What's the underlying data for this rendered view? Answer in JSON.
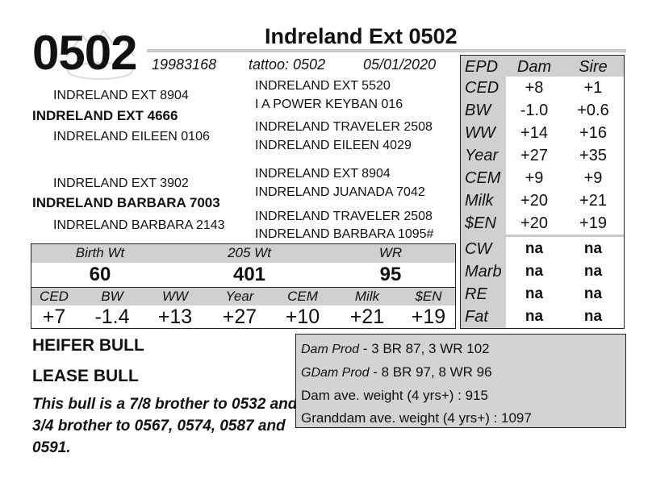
{
  "header": {
    "lot": "0502",
    "name": "Indreland Ext 0502",
    "registration": "19983168",
    "tattoo": "tattoo: 0502",
    "birth_date": "05/01/2020"
  },
  "pedigree": {
    "sire_sire": "INDRELAND EXT 8904",
    "sire": "INDRELAND EXT 4666",
    "sire_dam": "INDRELAND EILEEN 0106",
    "dam_sire": "INDRELAND EXT 3902",
    "dam": "INDRELAND BARBARA 7003",
    "dam_dam": "INDRELAND BARBARA 2143",
    "third_gen": [
      "INDRELAND EXT 5520",
      "I A POWER KEYBAN 016",
      "INDRELAND TRAVELER 2508",
      "INDRELAND EILEEN 4029",
      "INDRELAND EXT 8904",
      "INDRELAND JUANADA 7042",
      "INDRELAND TRAVELER 2508",
      "INDRELAND BARBARA 1095#"
    ]
  },
  "epd_table": {
    "headers": [
      "EPD",
      "Dam",
      "Sire"
    ],
    "rows": [
      {
        "label": "CED",
        "dam": "+8",
        "sire": "+1"
      },
      {
        "label": "BW",
        "dam": "-1.0",
        "sire": "+0.6"
      },
      {
        "label": "WW",
        "dam": "+14",
        "sire": "+16"
      },
      {
        "label": "Year",
        "dam": "+27",
        "sire": "+35"
      },
      {
        "label": "CEM",
        "dam": "+9",
        "sire": "+9"
      },
      {
        "label": "Milk",
        "dam": "+20",
        "sire": "+21"
      },
      {
        "label": "$EN",
        "dam": "+20",
        "sire": "+19"
      },
      {
        "label": "CW",
        "dam": "na",
        "sire": "na"
      },
      {
        "label": "Marb",
        "dam": "na",
        "sire": "na"
      },
      {
        "label": "RE",
        "dam": "na",
        "sire": "na"
      },
      {
        "label": "Fat",
        "dam": "na",
        "sire": "na"
      }
    ]
  },
  "performance": {
    "headers": [
      "Birth Wt",
      "205 Wt",
      "WR"
    ],
    "values": [
      "60",
      "401",
      "95"
    ],
    "epd_labels": [
      "CED",
      "BW",
      "WW",
      "Year",
      "CEM",
      "Milk",
      "$EN"
    ],
    "epd_values": [
      "+7",
      "-1.4",
      "+13",
      "+27",
      "+10",
      "+21",
      "+19"
    ]
  },
  "tags": [
    "HEIFER BULL",
    "LEASE BULL"
  ],
  "note": "This bull is a 7/8 brother to 0532 and 3/4 brother to 0567, 0574, 0587 and 0591.",
  "production": {
    "dam_prod_label": "Dam Prod",
    "dam_prod": " - 3 BR 87, 3 WR 102",
    "gdam_prod_label": "GDam Prod",
    "gdam_prod": " - 8 BR 97, 8 WR 96",
    "dam_weight": "Dam ave. weight (4 yrs+) : 915",
    "granddam_weight": "Granddam ave. weight (4 yrs+) : 1097"
  }
}
